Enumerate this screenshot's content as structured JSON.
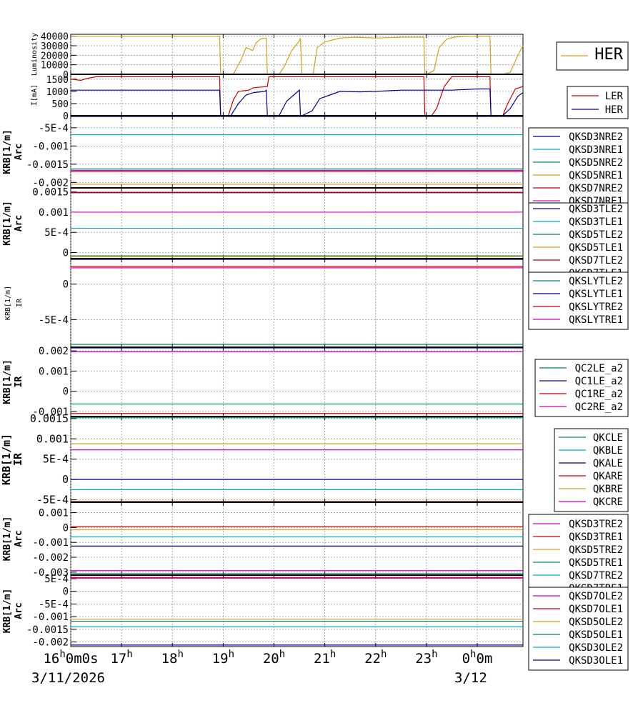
{
  "time_axis": {
    "hour_labels": [
      "16",
      "17",
      "18",
      "19",
      "20",
      "21",
      "22",
      "23",
      "0"
    ],
    "hour_suffix": "h",
    "first_tick_extra": "0m0s",
    "last_tick_extra": "0m",
    "date_left": "3/11/2026",
    "date_right": "3/12"
  },
  "chart_data": [
    {
      "type": "line",
      "ylabel": "Luminosity",
      "ylim": [
        0,
        42000
      ],
      "yticks": [
        "40000",
        "30000",
        "20000",
        "10000",
        "0"
      ],
      "ytick_values": [
        40000,
        30000,
        20000,
        10000,
        0
      ],
      "legend": [
        "HER"
      ],
      "series": [
        {
          "name": "HER",
          "color": "#d4a020",
          "x": [
            16.0,
            18.93,
            18.95,
            19.2,
            19.35,
            19.45,
            19.58,
            19.65,
            19.73,
            19.82,
            19.85,
            19.87,
            20.1,
            20.2,
            20.35,
            20.5,
            20.52,
            20.55,
            20.77,
            20.85,
            21.0,
            21.15,
            21.3,
            21.6,
            22.0,
            22.5,
            22.95,
            22.97,
            23.0,
            23.15,
            23.25,
            23.4,
            23.55,
            23.8,
            24.25,
            24.27,
            24.5,
            24.65,
            24.8,
            24.9
          ],
          "y": [
            40000,
            40000,
            0,
            0,
            15000,
            28000,
            25000,
            33000,
            37000,
            38000,
            38000,
            0,
            0,
            8000,
            25000,
            35000,
            38000,
            0,
            0,
            28000,
            34000,
            36000,
            38000,
            39000,
            38000,
            39000,
            39000,
            0,
            0,
            4000,
            28000,
            37000,
            39000,
            40000,
            40000,
            0,
            0,
            2000,
            20000,
            30000
          ]
        }
      ]
    },
    {
      "type": "line",
      "ylabel": "I[mA]",
      "ylim": [
        0,
        1700
      ],
      "yticks": [
        "1500",
        "1000",
        "500",
        "0"
      ],
      "ytick_values": [
        1500,
        1000,
        500,
        0
      ],
      "legend": [
        "LER",
        "HER"
      ],
      "series": [
        {
          "name": "LER",
          "color": "#cc0000",
          "x": [
            16.0,
            16.2,
            16.3,
            16.5,
            18.93,
            18.95,
            19.1,
            19.2,
            19.3,
            19.5,
            19.6,
            19.87,
            19.9,
            20.1,
            20.3,
            20.5,
            20.7,
            21.0,
            21.5,
            22.0,
            22.5,
            22.95,
            22.97,
            23.1,
            23.2,
            23.35,
            23.5,
            24.0,
            24.25,
            24.27,
            24.5,
            24.6,
            24.75,
            24.9
          ],
          "y": [
            1500,
            1450,
            1520,
            1600,
            1600,
            0,
            0,
            650,
            1000,
            1050,
            1150,
            1200,
            1600,
            1600,
            1600,
            1600,
            1600,
            1600,
            1600,
            1600,
            1600,
            1600,
            0,
            0,
            300,
            1200,
            1600,
            1600,
            1600,
            0,
            0,
            500,
            1100,
            1200
          ]
        },
        {
          "name": "HER",
          "color": "#000099",
          "x": [
            16.0,
            18.93,
            18.95,
            19.15,
            19.3,
            19.45,
            19.6,
            19.82,
            19.85,
            19.87,
            20.1,
            20.25,
            20.5,
            20.52,
            20.55,
            20.75,
            20.9,
            21.1,
            21.3,
            21.7,
            22.0,
            22.5,
            23.0,
            23.5,
            24.0,
            24.2,
            24.25,
            24.27,
            24.5,
            24.65,
            24.8,
            24.9
          ],
          "y": [
            1050,
            1050,
            0,
            0,
            500,
            850,
            950,
            1000,
            1050,
            0,
            0,
            600,
            1050,
            0,
            0,
            200,
            700,
            850,
            1000,
            980,
            1000,
            1050,
            1050,
            1050,
            1100,
            1100,
            1100,
            0,
            0,
            300,
            800,
            950
          ]
        }
      ]
    },
    {
      "type": "line",
      "ylabel": "KRB[1/m]",
      "ylabel2": "Arc",
      "ylim": [
        -0.00215,
        -0.00017
      ],
      "yticks": [
        "-5E-4",
        "-0.001",
        "-0.0015",
        "-0.002"
      ],
      "ytick_values": [
        -0.0005,
        -0.001,
        -0.0015,
        -0.002
      ],
      "legend": [
        "QKSD3NRE2",
        "QKSD3NRE1",
        "QKSD5NRE2",
        "QKSD5NRE1",
        "QKSD7NRE2",
        "QKSD7NRE1"
      ],
      "series": [
        {
          "name": "QKSD3NRE2",
          "color": "#000099",
          "value": -0.00018
        },
        {
          "name": "QKSD3NRE1",
          "color": "#00aacc",
          "value": -0.00069
        },
        {
          "name": "QKSD5NRE2",
          "color": "#008866",
          "value": -0.00163
        },
        {
          "name": "QKSD5NRE1",
          "color": "#d4a020",
          "value": -0.00205
        },
        {
          "name": "QKSD7NRE2",
          "color": "#cc0000",
          "value": -0.0017
        },
        {
          "name": "QKSD7NRE1",
          "color": "#cc00cc",
          "value": -0.00167
        }
      ]
    },
    {
      "type": "line",
      "ylabel": "KRB[1/m]",
      "ylabel2": "Arc",
      "ylim": [
        -0.00015,
        0.0016
      ],
      "yticks": [
        "0.0015",
        "0.001",
        "5E-4",
        "0"
      ],
      "ytick_values": [
        0.0015,
        0.001,
        0.0005,
        0
      ],
      "legend": [
        "QKSD3TLE2",
        "QKSD3TLE1",
        "QKSD5TLE2",
        "QKSD5TLE1",
        "QKSD7TLE2",
        "QKSD7TLE1"
      ],
      "series": [
        {
          "name": "QKSD3TLE2",
          "color": "#000099",
          "value": 0.00148
        },
        {
          "name": "QKSD3TLE1",
          "color": "#00aacc",
          "value": 0.0006
        },
        {
          "name": "QKSD5TLE2",
          "color": "#008866",
          "value": -8e-05
        },
        {
          "name": "QKSD5TLE1",
          "color": "#d4a020",
          "value": -0.0001
        },
        {
          "name": "QKSD7TLE2",
          "color": "#cc0000",
          "value": 0.00149
        },
        {
          "name": "QKSD7TLE1",
          "color": "#cc00cc",
          "value": 0.001
        }
      ]
    },
    {
      "type": "line",
      "ylabel": "KRB[1/m]",
      "ylabel2": "IR",
      "ylim": [
        -0.00089,
        0.00036
      ],
      "yticks": [
        "0",
        "-5E-4"
      ],
      "ytick_values": [
        0,
        -0.0005
      ],
      "legend": [
        "QKSLYTLE2",
        "QKSLYTLE1",
        "QKSLYTRE2",
        "QKSLYTRE1"
      ],
      "series": [
        {
          "name": "QKSLYTLE2",
          "color": "#008866",
          "value": -0.00085
        },
        {
          "name": "QKSLYTLE1",
          "color": "#000099",
          "value": 0.00038
        },
        {
          "name": "QKSLYTRE2",
          "color": "#cc0000",
          "value": 0.00025
        },
        {
          "name": "QKSLYTRE1",
          "color": "#cc00cc",
          "value": 0.00023
        }
      ]
    },
    {
      "type": "line",
      "ylabel": "KRB[1/m]",
      "ylabel2": "IR",
      "ylim": [
        -0.00125,
        0.00218
      ],
      "yticks": [
        "0.002",
        "0.001",
        "0",
        "-0.001"
      ],
      "ytick_values": [
        0.002,
        0.001,
        0,
        -0.001
      ],
      "legend": [
        "QC2LE_a2",
        "QC1LE_a2",
        "QC1RE_a2",
        "QC2RE_a2"
      ],
      "series": [
        {
          "name": "QC2LE_a2",
          "color": "#008866",
          "value": -0.00063
        },
        {
          "name": "QC1LE_a2",
          "color": "#000099",
          "value": 0.0023
        },
        {
          "name": "QC1RE_a2",
          "color": "#cc0000",
          "value": -0.0011
        },
        {
          "name": "QC2RE_a2",
          "color": "#cc00cc",
          "value": 0.00196
        }
      ]
    },
    {
      "type": "line",
      "ylabel": "KRB[1/m]",
      "ylabel2": "IR",
      "ylim": [
        -0.00056,
        0.00155
      ],
      "yticks": [
        "0.0015",
        "0.001",
        "5E-4",
        "0",
        "-5E-4"
      ],
      "ytick_values": [
        0.0015,
        0.001,
        0.0005,
        0,
        -0.0005
      ],
      "legend": [
        "QKCLE",
        "QKBLE",
        "QKALE",
        "QKARE",
        "QKBRE",
        "QKCRE"
      ],
      "series": [
        {
          "name": "QKCLE",
          "color": "#008866",
          "value": 0.00152
        },
        {
          "name": "QKBLE",
          "color": "#00aacc",
          "value": -0.00025
        },
        {
          "name": "QKALE",
          "color": "#000099",
          "value": 0
        },
        {
          "name": "QKARE",
          "color": "#cc0000",
          "value": -0.00055
        },
        {
          "name": "QKBRE",
          "color": "#d4a020",
          "value": 0.00088
        },
        {
          "name": "QKCRE",
          "color": "#cc00cc",
          "value": 0.00073
        }
      ]
    },
    {
      "type": "line",
      "ylabel": "KRB[1/m]",
      "ylabel2": "Arc",
      "ylim": [
        -0.0032,
        0.0017
      ],
      "yticks": [
        "0.001",
        "0",
        "-0.001",
        "-0.002",
        "-0.003"
      ],
      "ytick_values": [
        0.001,
        0,
        -0.001,
        -0.002,
        -0.003
      ],
      "legend": [
        "QKSD3TRE2",
        "QKSD3TRE1",
        "QKSD5TRE2",
        "QKSD5TRE1",
        "QKSD7TRE2",
        "QKSD7TRE1"
      ],
      "series": [
        {
          "name": "QKSD3TRE2",
          "color": "#cc00cc",
          "value": -0.0029
        },
        {
          "name": "QKSD3TRE1",
          "color": "#cc0000",
          "value": 5e-05
        },
        {
          "name": "QKSD5TRE2",
          "color": "#d4a020",
          "value": -0.00015
        },
        {
          "name": "QKSD5TRE1",
          "color": "#008866",
          "value": -0.0031
        },
        {
          "name": "QKSD7TRE2",
          "color": "#00aacc",
          "value": -0.00063
        },
        {
          "name": "QKSD7TRE1",
          "color": "#000099",
          "value": -0.00125
        }
      ]
    },
    {
      "type": "line",
      "ylabel": "KRB[1/m]",
      "ylabel2": "Arc",
      "ylim": [
        -0.00218,
        0.00064
      ],
      "yticks": [
        "5E-4",
        "0",
        "-5E-4",
        "-0.001",
        "-0.0015",
        "-0.002"
      ],
      "ytick_values": [
        0.0005,
        0,
        -0.0005,
        -0.001,
        -0.0015,
        -0.002
      ],
      "legend": [
        "QKSD7OLE2",
        "QKSD7OLE1",
        "QKSD5OLE2",
        "QKSD5OLE1",
        "QKSD3OLE2",
        "QKSD3OLE1"
      ],
      "series": [
        {
          "name": "QKSD7OLE2",
          "color": "#cc00cc",
          "value": 0.00052
        },
        {
          "name": "QKSD7OLE1",
          "color": "#cc0000",
          "value": 0.00055
        },
        {
          "name": "QKSD5OLE2",
          "color": "#d4a020",
          "value": -0.0011
        },
        {
          "name": "QKSD5OLE1",
          "color": "#008866",
          "value": -0.00118
        },
        {
          "name": "QKSD3OLE2",
          "color": "#00aacc",
          "value": -0.0014
        },
        {
          "name": "QKSD3OLE1",
          "color": "#000099",
          "value": -0.00212
        }
      ]
    }
  ]
}
